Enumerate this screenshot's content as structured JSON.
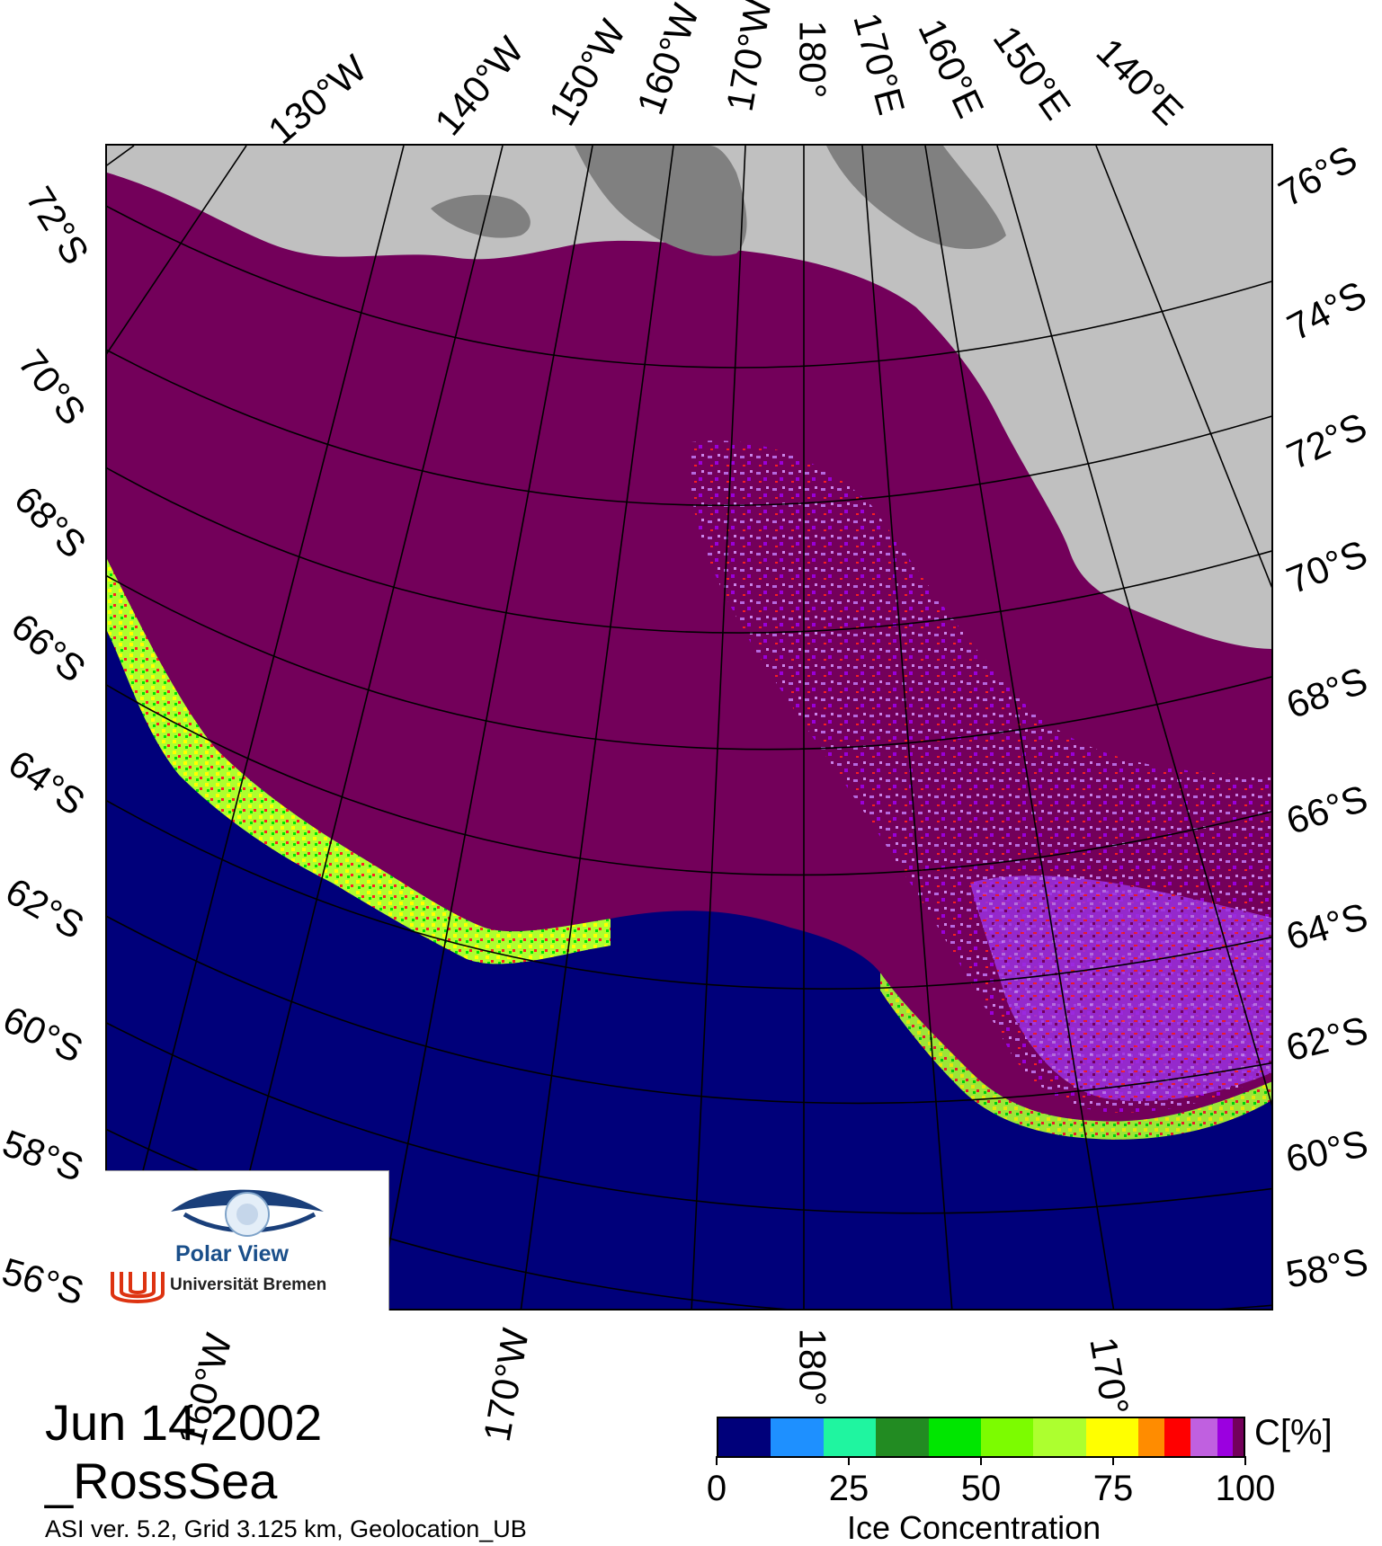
{
  "title": {
    "date": "Jun 14 2002",
    "region": "_RossSea",
    "processing": "ASI ver. 5.2,  Grid 3.125 km, Geolocation_UB"
  },
  "map": {
    "projection": "polar-stereographic-south",
    "colors": {
      "open_water": "#00007a",
      "land": "#c0c0c0",
      "ice_shelf": "#808080",
      "full_ice": "#73005a",
      "grid": "#000000"
    },
    "top_longitude_labels": [
      "130°W",
      "140°W",
      "150°W",
      "160°W",
      "170°W",
      "180°",
      "170°E",
      "160°E",
      "150°E",
      "140°E"
    ],
    "left_latitude_labels": [
      "72°S",
      "70°S",
      "68°S",
      "66°S",
      "64°S",
      "62°S",
      "60°S",
      "58°S",
      "56°S"
    ],
    "right_latitude_labels": [
      "76°S",
      "74°S",
      "72°S",
      "70°S",
      "68°S",
      "66°S",
      "64°S",
      "62°S",
      "60°S",
      "58°S"
    ],
    "bottom_longitude_labels": [
      "160°W",
      "170°W",
      "180°",
      "170°"
    ]
  },
  "logo": {
    "name": "Polar View",
    "institution": "Universität Bremen"
  },
  "colorbar": {
    "label": "Ice Concentration",
    "unit": "C[%]",
    "range": [
      0,
      100
    ],
    "ticks": [
      "0",
      "25",
      "50",
      "75",
      "100"
    ],
    "bins": [
      {
        "from": 0,
        "to": 10,
        "color": "#00007a"
      },
      {
        "from": 10,
        "to": 20,
        "color": "#1e90ff"
      },
      {
        "from": 20,
        "to": 30,
        "color": "#1ff5a0"
      },
      {
        "from": 30,
        "to": 40,
        "color": "#228b22"
      },
      {
        "from": 40,
        "to": 50,
        "color": "#00e600"
      },
      {
        "from": 50,
        "to": 60,
        "color": "#7cfc00"
      },
      {
        "from": 60,
        "to": 70,
        "color": "#adff2f"
      },
      {
        "from": 70,
        "to": 75,
        "color": "#ffff00"
      },
      {
        "from": 75,
        "to": 80,
        "color": "#ffff00"
      },
      {
        "from": 80,
        "to": 85,
        "color": "#ff8c00"
      },
      {
        "from": 85,
        "to": 90,
        "color": "#ff0000"
      },
      {
        "from": 90,
        "to": 95,
        "color": "#c060e0"
      },
      {
        "from": 95,
        "to": 98,
        "color": "#9b00e0"
      },
      {
        "from": 98,
        "to": 100,
        "color": "#73005a"
      }
    ]
  }
}
